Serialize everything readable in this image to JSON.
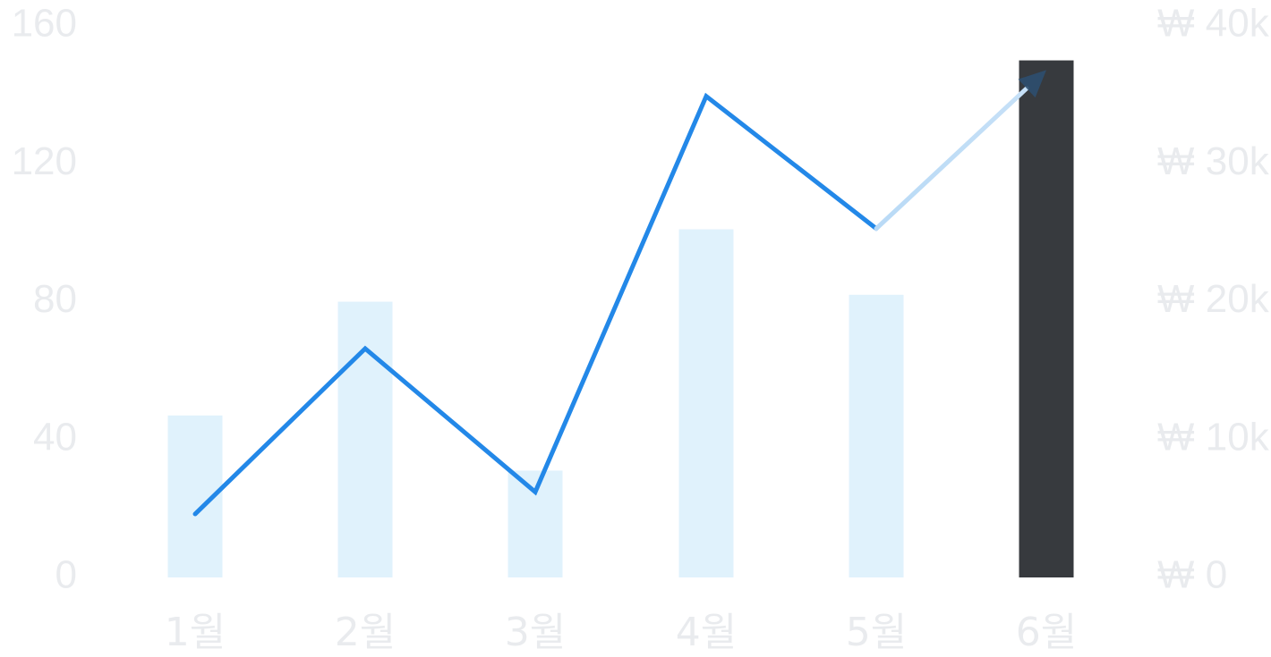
{
  "chart_data": {
    "type": "bar",
    "categories": [
      "1월",
      "2월",
      "3월",
      "4월",
      "5월",
      "6월"
    ],
    "series": [
      {
        "type": "bar",
        "axis": "left",
        "values": [
          47,
          80,
          31,
          101,
          82,
          150
        ],
        "color": "#e0f2fc",
        "highlight_index": 5,
        "highlight_color": "#373a3e"
      },
      {
        "type": "line",
        "axis": "right",
        "values": [
          4600,
          16600,
          6200,
          34900,
          25300,
          36800
        ],
        "color": "#2388e8",
        "projected_from_index": 4,
        "projected_color": "#c8e1f7",
        "end_marker": "arrow"
      }
    ],
    "y_left": {
      "ticks": [
        "160",
        "120",
        "80",
        "40",
        "0"
      ],
      "range": [
        0,
        160
      ]
    },
    "y_right": {
      "ticks": [
        "₩ 40k",
        "₩ 30k",
        "₩ 20k",
        "₩ 10k",
        "₩ 0"
      ],
      "range": [
        0,
        40000
      ]
    },
    "grid": false,
    "title": "",
    "xlabel": "",
    "ylabel": ""
  }
}
